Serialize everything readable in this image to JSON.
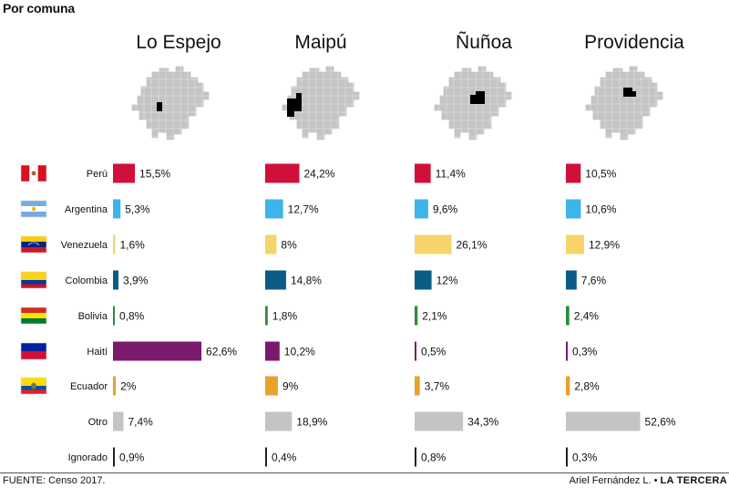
{
  "header": {
    "title": "Por comuna"
  },
  "footer": {
    "source": "FUENTE: Censo 2017.",
    "author": "Ariel Fernández L. •",
    "brand": "LA TERCERA"
  },
  "colors": {
    "Perú": "#d0103a",
    "Argentina": "#3db4ea",
    "Venezuela": "#f6d46b",
    "Colombia": "#0a5c86",
    "Bolivia": "#2f8a3c",
    "Haití": "#7a1a6c",
    "Ecuador": "#e8a22b",
    "Otro": "#c4c4c4",
    "Ignorado": "#222222",
    "map_fill": "#c4c4c4",
    "map_highlight": "#000000"
  },
  "chart_data": {
    "type": "bar",
    "orientation": "horizontal",
    "categories": [
      "Perú",
      "Argentina",
      "Venezuela",
      "Colombia",
      "Bolivia",
      "Haití",
      "Ecuador",
      "Otro",
      "Ignorado"
    ],
    "unit": "%",
    "xlim": [
      0,
      100
    ],
    "series": [
      {
        "name": "Lo Espejo",
        "values": [
          15.5,
          5.3,
          1.6,
          3.9,
          0.8,
          62.6,
          2,
          7.4,
          0.9
        ],
        "labels": [
          "15,5%",
          "5,3%",
          "1,6%",
          "3,9%",
          "0,8%",
          "62,6%",
          "2%",
          "7,4%",
          "0,9%"
        ]
      },
      {
        "name": "Maipú",
        "values": [
          24.2,
          12.7,
          8,
          14.8,
          1.8,
          10.2,
          9,
          18.9,
          0.4
        ],
        "labels": [
          "24,2%",
          "12,7%",
          "8%",
          "14,8%",
          "1,8%",
          "10,2%",
          "9%",
          "18,9%",
          "0,4%"
        ]
      },
      {
        "name": "Ñuñoa",
        "values": [
          11.4,
          9.6,
          26.1,
          12,
          2.1,
          0.5,
          3.7,
          34.3,
          0.8
        ],
        "labels": [
          "11,4%",
          "9,6%",
          "26,1%",
          "12%",
          "2,1%",
          "0,5%",
          "3,7%",
          "34,3%",
          "0,8%"
        ]
      },
      {
        "name": "Providencia",
        "values": [
          10.5,
          10.6,
          12.9,
          7.6,
          2.4,
          0.3,
          2.8,
          52.6,
          0.3
        ],
        "labels": [
          "10,5%",
          "10,6%",
          "12,9%",
          "7,6%",
          "2,4%",
          "0,3%",
          "2,8%",
          "52,6%",
          "0,3%"
        ]
      }
    ],
    "flags": [
      "peru-flag-icon",
      "argentina-flag-icon",
      "venezuela-flag-icon",
      "colombia-flag-icon",
      "bolivia-flag-icon",
      "haiti-flag-icon",
      "ecuador-flag-icon"
    ],
    "maps": [
      "santiago-map-lo-espejo",
      "santiago-map-maipu",
      "santiago-map-nunoa",
      "santiago-map-providencia"
    ]
  }
}
